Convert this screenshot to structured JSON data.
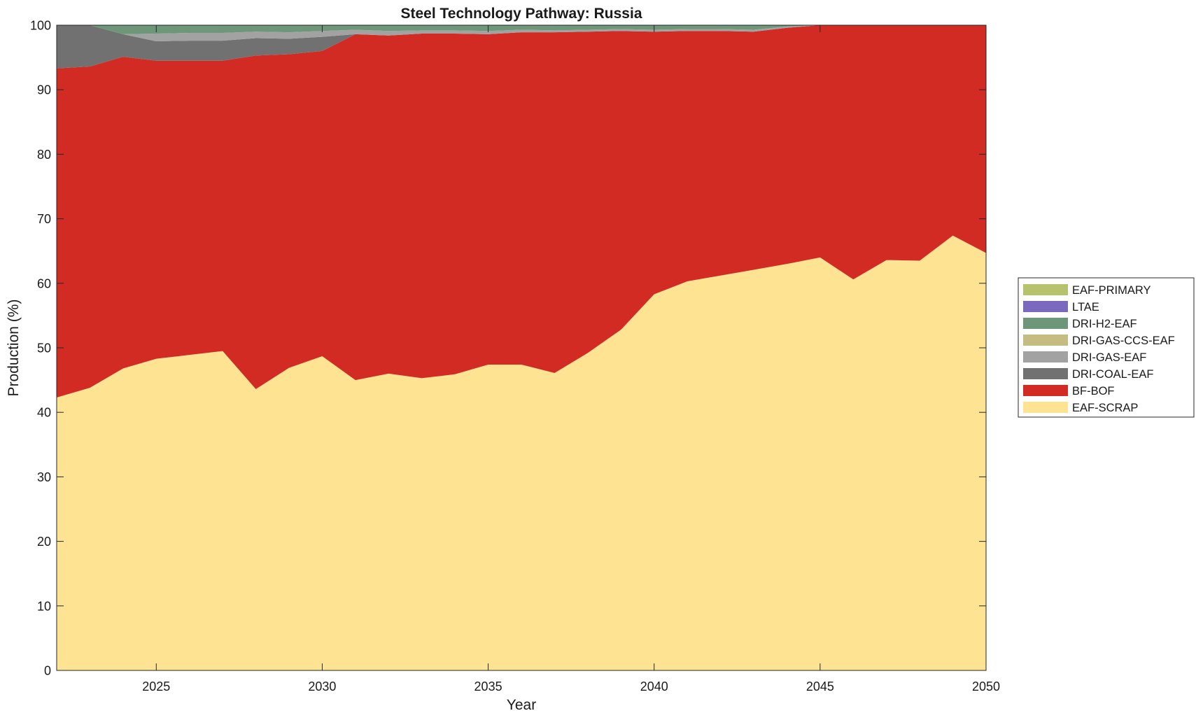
{
  "chart_data": {
    "type": "area",
    "stacked": true,
    "title": "Steel Technology Pathway: Russia",
    "xlabel": "Year",
    "ylabel": "Production (%)",
    "xlim": [
      2022,
      2050
    ],
    "ylim": [
      0,
      100
    ],
    "xticks": [
      2025,
      2030,
      2035,
      2040,
      2045,
      2050
    ],
    "yticks": [
      0,
      10,
      20,
      30,
      40,
      50,
      60,
      70,
      80,
      90,
      100
    ],
    "grid": false,
    "legend_position": "right",
    "x": [
      2022,
      2023,
      2024,
      2025,
      2026,
      2027,
      2028,
      2029,
      2030,
      2031,
      2032,
      2033,
      2034,
      2035,
      2036,
      2037,
      2038,
      2039,
      2040,
      2041,
      2042,
      2043,
      2044,
      2045,
      2046,
      2047,
      2048,
      2049,
      2050
    ],
    "series": [
      {
        "name": "EAF-SCRAP",
        "color": "#fde392",
        "values": [
          42.3,
          43.8,
          46.8,
          48.3,
          48.9,
          49.5,
          43.6,
          46.9,
          48.7,
          45.0,
          46.0,
          45.3,
          45.9,
          47.4,
          47.4,
          46.1,
          49.2,
          52.8,
          58.3,
          60.3,
          61.2,
          62.1,
          63.0,
          64.0,
          60.6,
          63.6,
          63.5,
          67.4,
          64.7
        ]
      },
      {
        "name": "BF-BOF",
        "color": "#d22b24",
        "values": [
          51.0,
          49.8,
          48.3,
          46.2,
          45.6,
          45.0,
          51.7,
          48.6,
          47.3,
          53.6,
          52.4,
          53.4,
          52.8,
          51.2,
          51.5,
          52.8,
          49.8,
          46.3,
          40.7,
          38.8,
          37.9,
          36.9,
          36.6,
          36.0,
          39.4,
          36.4,
          36.5,
          32.6,
          35.3
        ]
      },
      {
        "name": "DRI-COAL-EAF",
        "color": "#717171",
        "values": [
          6.7,
          6.4,
          3.5,
          3.0,
          3.1,
          3.1,
          2.7,
          2.4,
          2.2,
          0.0,
          0.0,
          0.0,
          0.0,
          0.0,
          0.0,
          0.0,
          0.0,
          0.0,
          0.0,
          0.0,
          0.0,
          0.0,
          0.0,
          0.0,
          0.0,
          0.0,
          0.0,
          0.0,
          0.0
        ]
      },
      {
        "name": "DRI-GAS-EAF",
        "color": "#a2a2a2",
        "values": [
          0.0,
          0.0,
          0.0,
          1.2,
          1.2,
          1.2,
          1.0,
          1.0,
          0.9,
          0.7,
          0.7,
          0.5,
          0.5,
          0.5,
          0.4,
          0.3,
          0.3,
          0.3,
          0.3,
          0.3,
          0.3,
          0.3,
          0.2,
          0.0,
          0.0,
          0.0,
          0.0,
          0.0,
          0.0
        ]
      },
      {
        "name": "DRI-GAS-CCS-EAF",
        "color": "#c4bc80",
        "values": [
          0,
          0,
          0,
          0,
          0,
          0,
          0,
          0,
          0,
          0,
          0,
          0,
          0,
          0,
          0,
          0,
          0,
          0,
          0,
          0,
          0,
          0,
          0,
          0,
          0,
          0,
          0,
          0,
          0
        ]
      },
      {
        "name": "DRI-H2-EAF",
        "color": "#6e977a",
        "values": [
          0.0,
          0.0,
          1.4,
          1.3,
          1.2,
          1.2,
          1.0,
          1.1,
          0.9,
          0.7,
          0.9,
          0.8,
          0.8,
          0.9,
          0.7,
          0.8,
          0.7,
          0.6,
          0.7,
          0.6,
          0.6,
          0.7,
          0.2,
          0.0,
          0.0,
          0.0,
          0.0,
          0.0,
          0.0
        ]
      },
      {
        "name": "LTAE",
        "color": "#7a69bd",
        "values": [
          0,
          0,
          0,
          0,
          0,
          0,
          0,
          0,
          0,
          0,
          0,
          0,
          0,
          0,
          0,
          0,
          0,
          0,
          0,
          0,
          0,
          0,
          0,
          0,
          0,
          0,
          0,
          0,
          0
        ]
      },
      {
        "name": "EAF-PRIMARY",
        "color": "#b7c36c",
        "values": [
          0,
          0,
          0,
          0,
          0,
          0,
          0,
          0,
          0,
          0,
          0,
          0,
          0,
          0,
          0,
          0,
          0,
          0,
          0,
          0,
          0,
          0,
          0,
          0,
          0,
          0,
          0,
          0,
          0
        ]
      }
    ]
  }
}
